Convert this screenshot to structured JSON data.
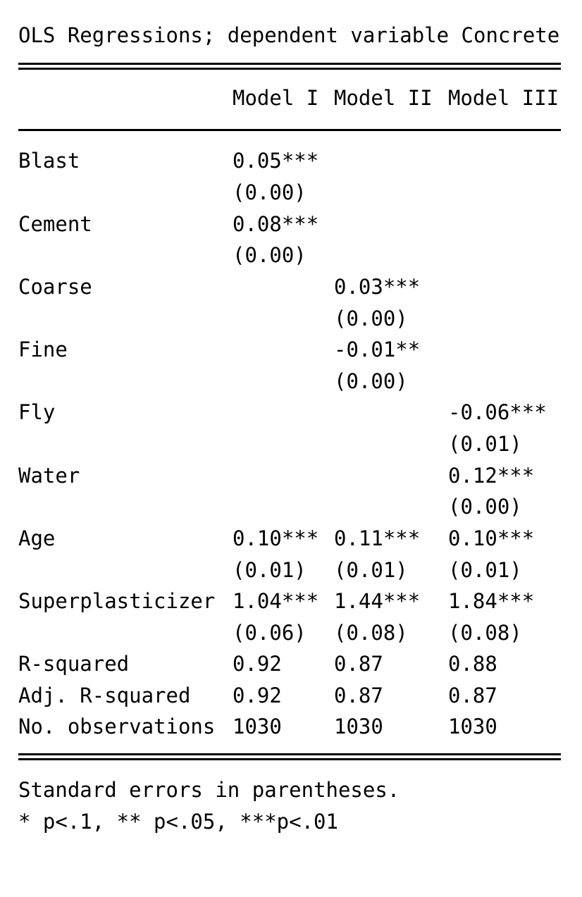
{
  "title": "OLS Regressions; dependent variable Concrete",
  "columns": [
    "Model I",
    "Model II",
    "Model III"
  ],
  "rows": [
    {
      "name": "Blast",
      "coef": [
        "0.05***",
        "",
        ""
      ],
      "se": [
        "(0.00)",
        "",
        ""
      ]
    },
    {
      "name": "Cement",
      "coef": [
        "0.08***",
        "",
        ""
      ],
      "se": [
        "(0.00)",
        "",
        ""
      ]
    },
    {
      "name": "Coarse",
      "coef": [
        "",
        "0.03***",
        ""
      ],
      "se": [
        "",
        "(0.00)",
        ""
      ]
    },
    {
      "name": "Fine",
      "coef": [
        "",
        "-0.01**",
        ""
      ],
      "se": [
        "",
        "(0.00)",
        ""
      ]
    },
    {
      "name": "Fly",
      "coef": [
        "",
        "",
        "-0.06***"
      ],
      "se": [
        "",
        "",
        "(0.01)"
      ]
    },
    {
      "name": "Water",
      "coef": [
        "",
        "",
        "0.12***"
      ],
      "se": [
        "",
        "",
        "(0.00)"
      ]
    },
    {
      "name": "Age",
      "coef": [
        "0.10***",
        "0.11***",
        "0.10***"
      ],
      "se": [
        "(0.01)",
        "(0.01)",
        "(0.01)"
      ]
    },
    {
      "name": "Superplasticizer",
      "coef": [
        "1.04***",
        "1.44***",
        "1.84***"
      ],
      "se": [
        "(0.06)",
        "(0.08)",
        "(0.08)"
      ]
    }
  ],
  "stats": [
    {
      "name": "R-squared",
      "values": [
        "0.92",
        "0.87",
        "0.88"
      ]
    },
    {
      "name": "Adj. R-squared",
      "values": [
        "0.92",
        "0.87",
        "0.87"
      ]
    },
    {
      "name": "No. observations",
      "values": [
        "1030",
        "1030",
        "1030"
      ]
    }
  ],
  "notes": [
    "Standard errors in parentheses.",
    "* p<.1, ** p<.05, ***p<.01"
  ]
}
